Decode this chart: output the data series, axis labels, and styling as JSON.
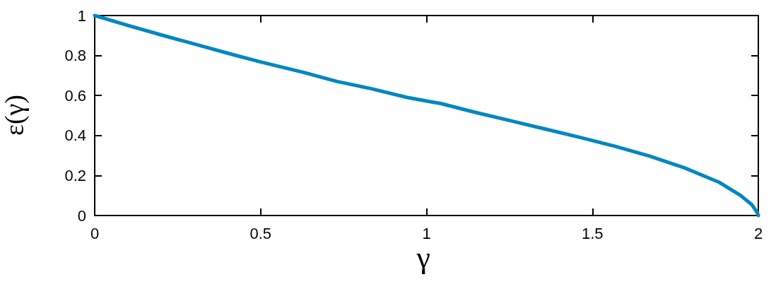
{
  "chart_data": {
    "type": "line",
    "xlabel": "γ",
    "ylabel": "ε(γ)",
    "xlim": [
      0,
      2
    ],
    "ylim": [
      0,
      1
    ],
    "xticks": [
      0,
      0.5,
      1,
      1.5,
      2
    ],
    "yticks": [
      0,
      0.2,
      0.4,
      0.6,
      0.8,
      1
    ],
    "grid": false,
    "marker": "none",
    "line_style": "solid",
    "series": [
      {
        "color": "#0087c0",
        "x": [
          0,
          0.105,
          0.205,
          0.311,
          0.418,
          0.5,
          0.631,
          0.731,
          0.837,
          0.94,
          1.015,
          1.043,
          1.149,
          1.256,
          1.359,
          1.462,
          1.569,
          1.672,
          1.778,
          1.881,
          1.945,
          1.98,
          1.997,
          2
        ],
        "values": [
          1,
          0.948,
          0.901,
          0.853,
          0.804,
          0.768,
          0.715,
          0.67,
          0.633,
          0.591,
          0.568,
          0.56,
          0.515,
          0.473,
          0.432,
          0.391,
          0.346,
          0.297,
          0.238,
          0.167,
          0.102,
          0.055,
          0.014,
          0
        ]
      }
    ]
  }
}
